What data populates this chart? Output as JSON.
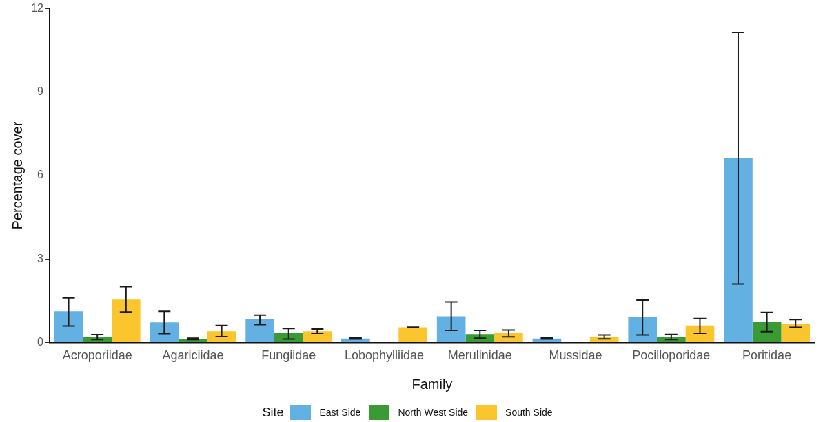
{
  "chart_data": {
    "type": "bar",
    "xlabel": "Family",
    "ylabel": "Percentage cover",
    "legend_title": "Site",
    "legend": "bottom",
    "grid": false,
    "categories": [
      "Acroporiidae",
      "Agariciidae",
      "Fungiidae",
      "Lobophylliidae",
      "Merulinidae",
      "Mussidae",
      "Pocilloporidae",
      "Poritidae"
    ],
    "ylim": [
      0,
      12
    ],
    "yticks": [
      0,
      3,
      6,
      9,
      12
    ],
    "series": [
      {
        "name": "East Side",
        "color": "#63b0e3",
        "values": [
          1.12,
          0.72,
          0.85,
          0.14,
          0.94,
          0.14,
          0.9,
          6.64
        ],
        "errors": [
          [
            0.59,
            1.6
          ],
          [
            0.32,
            1.12
          ],
          [
            0.64,
            0.98
          ],
          [
            0.12,
            0.16
          ],
          [
            0.43,
            1.46
          ],
          [
            0.12,
            0.16
          ],
          [
            0.27,
            1.52
          ],
          [
            2.1,
            11.15
          ]
        ]
      },
      {
        "name": "North West Side",
        "color": "#3a9b35",
        "values": [
          0.2,
          0.12,
          0.33,
          null,
          0.3,
          null,
          0.2,
          0.73
        ],
        "errors": [
          [
            0.1,
            0.28
          ],
          [
            0.1,
            0.15
          ],
          [
            0.12,
            0.5
          ],
          null,
          [
            0.15,
            0.43
          ],
          null,
          [
            0.1,
            0.29
          ],
          [
            0.39,
            1.08
          ]
        ]
      },
      {
        "name": "South Side",
        "color": "#fbc52d",
        "values": [
          1.54,
          0.4,
          0.4,
          0.54,
          0.33,
          0.2,
          0.61,
          0.67
        ],
        "errors": [
          [
            1.09,
            2.0
          ],
          [
            0.21,
            0.61
          ],
          [
            0.33,
            0.48
          ],
          [
            0.53,
            0.55
          ],
          [
            0.2,
            0.44
          ],
          [
            0.13,
            0.27
          ],
          [
            0.33,
            0.86
          ],
          [
            0.54,
            0.82
          ]
        ]
      }
    ]
  }
}
